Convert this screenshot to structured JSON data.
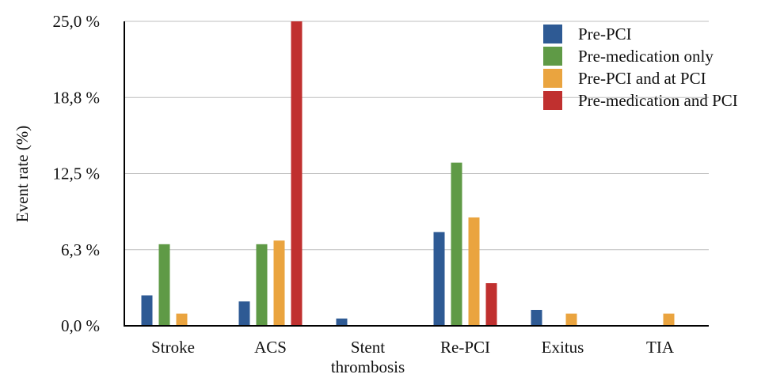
{
  "chart_data": {
    "type": "bar",
    "title": "",
    "xlabel": "",
    "ylabel": "Event rate (%)",
    "ylim": [
      0,
      25
    ],
    "yticks": [
      0,
      6.25,
      12.5,
      18.75,
      25
    ],
    "ytick_labels": [
      "0,0 %",
      "6,3 %",
      "12,5 %",
      "18,8 %",
      "25,0 %"
    ],
    "grid": true,
    "legend_position": "top-right",
    "categories": [
      [
        "Stroke"
      ],
      [
        "ACS"
      ],
      [
        "Stent",
        "thrombosis"
      ],
      [
        "Re-PCI"
      ],
      [
        "Exitus"
      ],
      [
        "TIA"
      ]
    ],
    "series": [
      {
        "name": "Pre-PCI",
        "color": "#2e5a94",
        "values": [
          2.5,
          2.0,
          0.6,
          7.7,
          1.3,
          0
        ]
      },
      {
        "name": "Pre-medication only",
        "color": "#5f9a46",
        "values": [
          6.7,
          6.7,
          0,
          13.4,
          0,
          0
        ]
      },
      {
        "name": "Pre-PCI and at PCI",
        "color": "#eaa43f",
        "values": [
          1.0,
          7.0,
          0,
          8.9,
          1.0,
          1.0
        ]
      },
      {
        "name": "Pre-medication and PCI",
        "color": "#c0302f",
        "values": [
          0,
          25.0,
          0,
          3.5,
          0,
          0
        ]
      }
    ]
  }
}
